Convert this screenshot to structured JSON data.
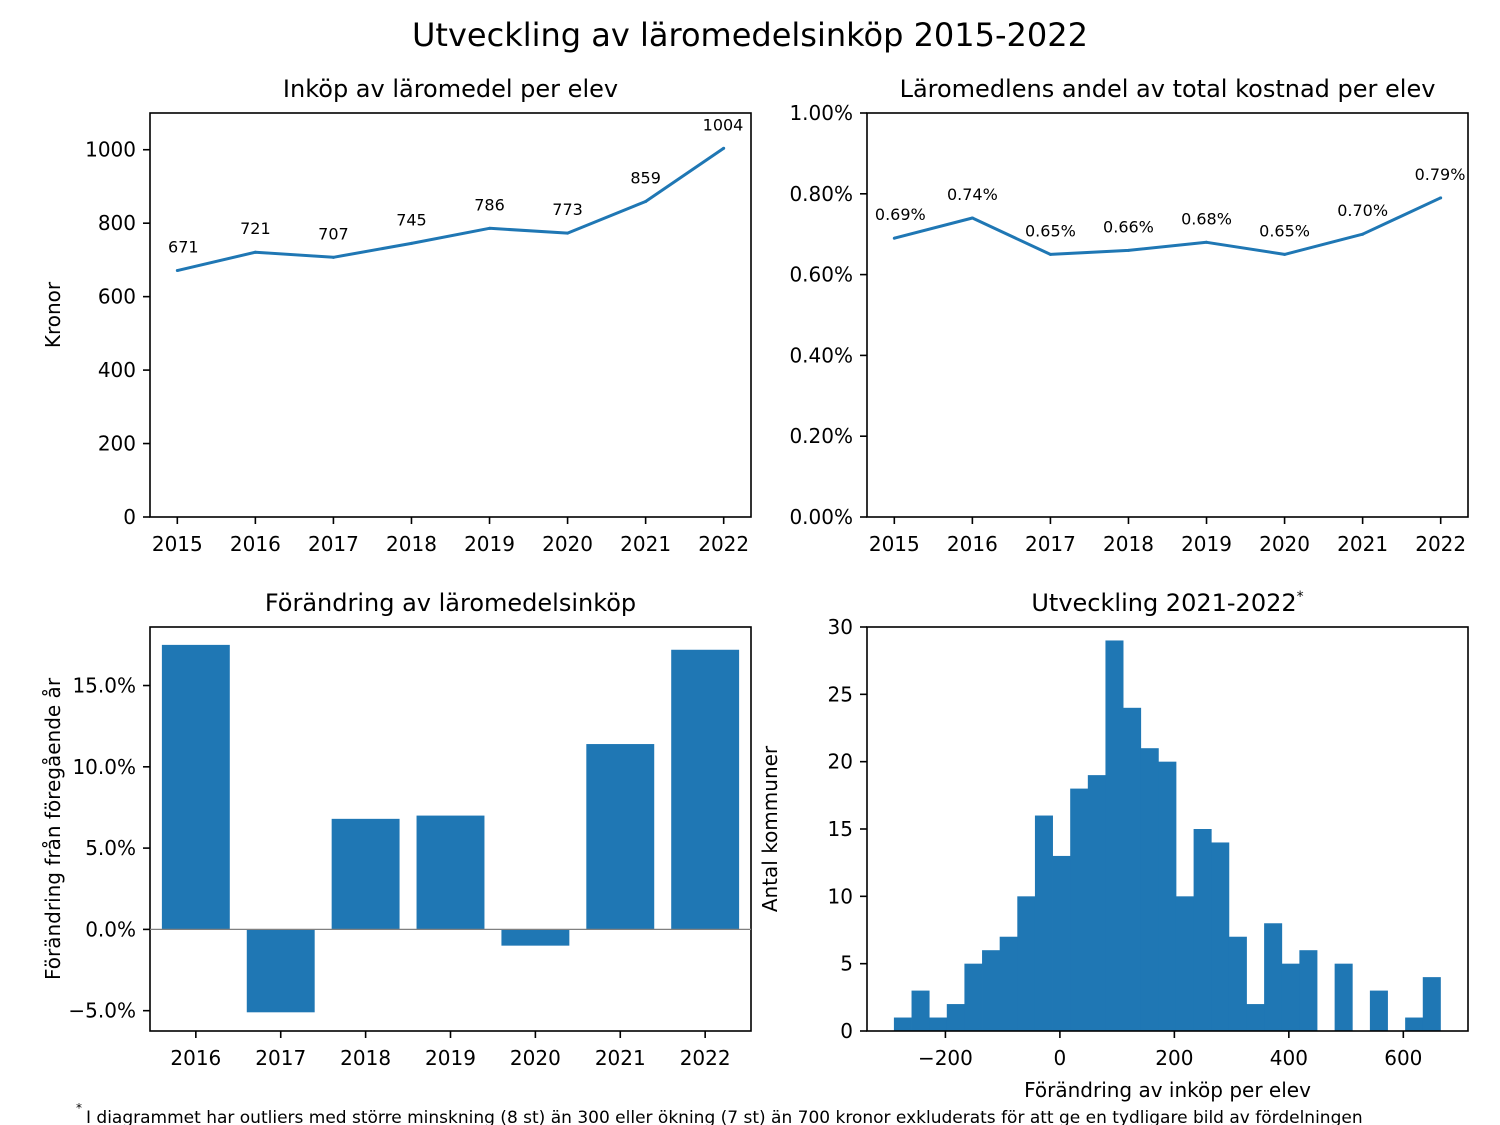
{
  "suptitle": "Utveckling av läromedelsinköp 2015-2022",
  "footnote": "I diagrammet har outliers med större minskning (8 st) än 300 eller ökning (7 st) än 700 kronor exkluderats för att ge en tydligare bild av fördelningen",
  "footnote_mark": "*",
  "colors": {
    "series": "#1f77b4",
    "zero_line": "#808080",
    "frame": "#000000"
  },
  "chart_data": [
    {
      "type": "line",
      "title": "Inköp av läromedel per elev",
      "xlabel": "",
      "ylabel": "Kronor",
      "x": [
        "2015",
        "2016",
        "2017",
        "2018",
        "2019",
        "2020",
        "2021",
        "2022"
      ],
      "values": [
        671,
        721,
        707,
        745,
        786,
        773,
        859,
        1004
      ],
      "data_labels": [
        "671",
        "721",
        "707",
        "745",
        "786",
        "773",
        "859",
        "1004"
      ],
      "ylim": [
        0,
        1100
      ],
      "yticks": [
        0,
        200,
        400,
        600,
        800,
        1000
      ],
      "ytick_labels": [
        "0",
        "200",
        "400",
        "600",
        "800",
        "1000"
      ],
      "grid": false
    },
    {
      "type": "line",
      "title": "Läromedlens andel av total kostnad per elev",
      "xlabel": "",
      "ylabel": "",
      "x": [
        "2015",
        "2016",
        "2017",
        "2018",
        "2019",
        "2020",
        "2021",
        "2022"
      ],
      "values": [
        0.0069,
        0.0074,
        0.0065,
        0.0066,
        0.0068,
        0.0065,
        0.007,
        0.0079
      ],
      "data_labels": [
        "0.69%",
        "0.74%",
        "0.65%",
        "0.66%",
        "0.68%",
        "0.65%",
        "0.70%",
        "0.79%"
      ],
      "ylim": [
        0,
        0.01
      ],
      "yticks": [
        0,
        0.002,
        0.004,
        0.006,
        0.008,
        0.01
      ],
      "ytick_labels": [
        "0.00%",
        "0.20%",
        "0.40%",
        "0.60%",
        "0.80%",
        "1.00%"
      ],
      "grid": false
    },
    {
      "type": "bar",
      "title": "Förändring av läromedelsinköp",
      "xlabel": "",
      "ylabel": "Förändring från föregående år",
      "categories": [
        "2016",
        "2017",
        "2018",
        "2019",
        "2020",
        "2021",
        "2022"
      ],
      "values": [
        0.175,
        -0.051,
        0.068,
        0.07,
        -0.01,
        0.114,
        0.172
      ],
      "ylim": [
        -0.0625,
        0.186
      ],
      "yticks": [
        -0.05,
        0.0,
        0.05,
        0.1,
        0.15
      ],
      "ytick_labels": [
        "−5.0%",
        "0.0%",
        "5.0%",
        "10.0%",
        "15.0%"
      ],
      "grid": false
    },
    {
      "type": "bar",
      "subtype": "histogram",
      "title": "Utveckling 2021-2022",
      "title_mark": "*",
      "xlabel": "Förändring av inköp per elev",
      "ylabel": "Antal kommuner",
      "bin_start": -290,
      "bin_width": 30.8,
      "counts": [
        1,
        3,
        1,
        2,
        5,
        6,
        7,
        10,
        16,
        13,
        18,
        19,
        29,
        24,
        21,
        20,
        10,
        15,
        14,
        7,
        2,
        8,
        5,
        6,
        0,
        5,
        0,
        3,
        0,
        1,
        4
      ],
      "xlim": [
        -337,
        713
      ],
      "xticks": [
        -200,
        0,
        200,
        400,
        600
      ],
      "xtick_labels": [
        "−200",
        "0",
        "200",
        "400",
        "600"
      ],
      "ylim": [
        0,
        30
      ],
      "yticks": [
        0,
        5,
        10,
        15,
        20,
        25,
        30
      ],
      "ytick_labels": [
        "0",
        "5",
        "10",
        "15",
        "20",
        "25",
        "30"
      ],
      "grid": false
    }
  ]
}
